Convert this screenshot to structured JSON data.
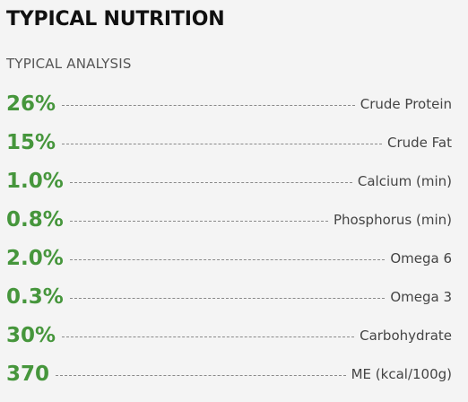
{
  "title": "TYPICAL NUTRITION",
  "subtitle": "TYPICAL ANALYSIS",
  "rows": [
    {
      "value": "26%",
      "label": "Crude Protein"
    },
    {
      "value": "15%",
      "label": "Crude Fat"
    },
    {
      "value": "1.0%",
      "label": "Calcium (min)"
    },
    {
      "value": "0.8%",
      "label": "Phosphorus (min)"
    },
    {
      "value": "2.0%",
      "label": "Omega 6"
    },
    {
      "value": "0.3%",
      "label": "Omega 3"
    },
    {
      "value": "30%",
      "label": "Carbohydrate"
    },
    {
      "value": "370",
      "label": "ME (kcal/100g)"
    }
  ],
  "colors": {
    "value_green": "#46963c",
    "background": "#f4f4f4"
  }
}
